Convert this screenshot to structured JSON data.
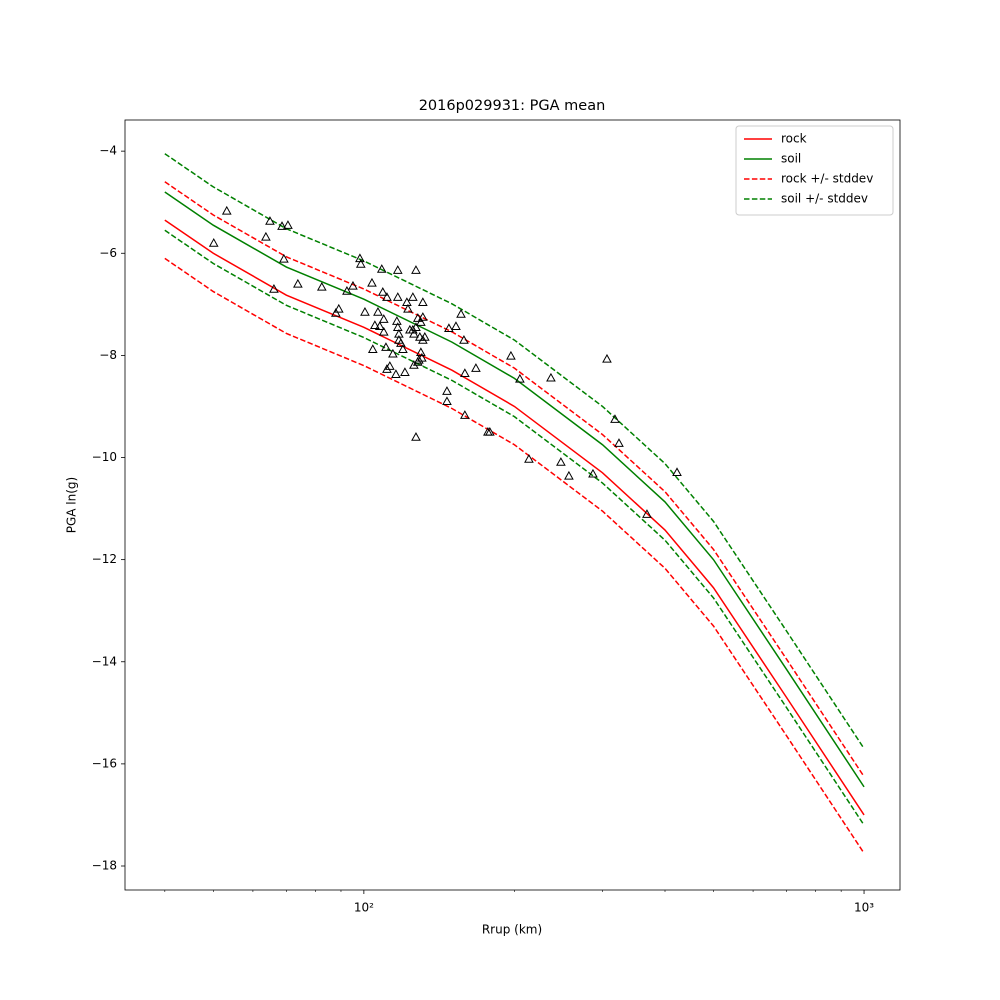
{
  "chart_data": {
    "type": "line",
    "title": "2016p029931: PGA mean",
    "x_label": "Rrup (km)",
    "y_label": "PGA ln(g)",
    "x_scale": "log",
    "xlim": [
      33.3,
      1180
    ],
    "ylim": [
      -18.47,
      -3.39
    ],
    "xticks": [
      {
        "value": 100,
        "label": "10²"
      },
      {
        "value": 1000,
        "label": "10³"
      }
    ],
    "xminorticks": [
      40,
      50,
      60,
      70,
      80,
      90,
      200,
      300,
      400,
      500,
      600,
      700,
      800,
      900
    ],
    "yticks": [
      {
        "value": -18,
        "label": "−18"
      },
      {
        "value": -16,
        "label": "−16"
      },
      {
        "value": -14,
        "label": "−14"
      },
      {
        "value": -12,
        "label": "−12"
      },
      {
        "value": -10,
        "label": "−10"
      },
      {
        "value": -8,
        "label": "−8"
      },
      {
        "value": -6,
        "label": "−6"
      },
      {
        "value": -4,
        "label": "−4"
      }
    ],
    "legend": "upper right",
    "x": [
      40,
      50,
      70,
      100,
      150,
      200,
      300,
      400,
      500,
      700,
      1000
    ],
    "series": [
      {
        "name": "rock",
        "color": "#ff0000",
        "style": "solid",
        "values": [
          -5.35,
          -6.0,
          -6.82,
          -7.45,
          -8.29,
          -9.0,
          -10.3,
          -11.42,
          -12.55,
          -14.7,
          -17.0
        ]
      },
      {
        "name": "soil",
        "color": "#008000",
        "style": "solid",
        "values": [
          -4.8,
          -5.45,
          -6.27,
          -6.9,
          -7.74,
          -8.45,
          -9.75,
          -10.87,
          -12.0,
          -14.15,
          -16.45
        ]
      },
      {
        "name": "rock +/- stddev",
        "color": "#ff0000",
        "style": "dashed",
        "upper": [
          -4.6,
          -5.25,
          -6.07,
          -6.7,
          -7.54,
          -8.25,
          -9.55,
          -10.67,
          -11.8,
          -13.95,
          -16.25
        ],
        "lower": [
          -6.1,
          -6.75,
          -7.57,
          -8.2,
          -9.04,
          -9.75,
          -11.05,
          -12.17,
          -13.3,
          -15.45,
          -17.75
        ]
      },
      {
        "name": "soil +/- stddev",
        "color": "#008000",
        "style": "dashed",
        "upper": [
          -4.05,
          -4.7,
          -5.52,
          -6.15,
          -6.99,
          -7.7,
          -9.0,
          -10.12,
          -11.25,
          -13.4,
          -15.7
        ],
        "lower": [
          -5.55,
          -6.2,
          -7.02,
          -7.65,
          -8.49,
          -9.2,
          -10.5,
          -11.62,
          -12.75,
          -14.9,
          -17.2
        ]
      }
    ],
    "observations": {
      "color": "#000000",
      "x": [
        50.1,
        53.2,
        63.7,
        64.9,
        68.6,
        70.5,
        69.2,
        66.1,
        73.8,
        82.4,
        87.9,
        89.1,
        92.5,
        95.1,
        98.2,
        98.6,
        100.5,
        103.8,
        105.2,
        104.2,
        106.7,
        107.6,
        108.6,
        109.1,
        109.6,
        110.7,
        109.6,
        111.2,
        111.2,
        112.7,
        114.3,
        115.9,
        116.9,
        116.9,
        116.4,
        116.9,
        117.5,
        117.5,
        118.6,
        119.7,
        120.8,
        121.9,
        122.5,
        123.6,
        125.3,
        125.3,
        125.9,
        125.9,
        127.1,
        127.1,
        127.1,
        128.2,
        128.2,
        128.8,
        130.0,
        129.4,
        130.0,
        130.6,
        131.2,
        131.2,
        131.2,
        132.4,
        146.6,
        146.6,
        147.9,
        152.8,
        156.4,
        158.5,
        159.2,
        159.2,
        167.5,
        177.0,
        178.6,
        196.8,
        205.1,
        213.8,
        236.6,
        247.7,
        257.0,
        287.1,
        306.2,
        317.7,
        323.6,
        368.1,
        422.7
      ],
      "values": [
        -5.8,
        -5.17,
        -5.68,
        -5.37,
        -5.47,
        -5.45,
        -6.11,
        -6.7,
        -6.6,
        -6.66,
        -7.17,
        -7.09,
        -6.74,
        -6.64,
        -6.1,
        -6.21,
        -7.15,
        -6.58,
        -7.41,
        -7.88,
        -7.15,
        -7.43,
        -6.31,
        -6.76,
        -7.54,
        -7.84,
        -7.29,
        -6.86,
        -8.27,
        -8.21,
        -7.97,
        -8.37,
        -6.33,
        -6.86,
        -7.33,
        -7.45,
        -7.58,
        -7.7,
        -7.76,
        -7.88,
        -8.33,
        -6.96,
        -7.09,
        -7.5,
        -6.86,
        -7.5,
        -7.58,
        -8.19,
        -7.45,
        -6.33,
        -9.6,
        -8.13,
        -7.27,
        -8.09,
        -7.35,
        -7.64,
        -7.94,
        -8.05,
        -6.96,
        -7.25,
        -7.7,
        -7.64,
        -8.7,
        -8.9,
        -7.47,
        -7.43,
        -7.19,
        -7.7,
        -8.35,
        -9.17,
        -8.25,
        -9.5,
        -9.5,
        -8.01,
        -8.46,
        -10.03,
        -8.44,
        -10.09,
        -10.36,
        -10.32,
        -8.07,
        -9.25,
        -9.72,
        -11.11,
        -10.29
      ]
    }
  }
}
